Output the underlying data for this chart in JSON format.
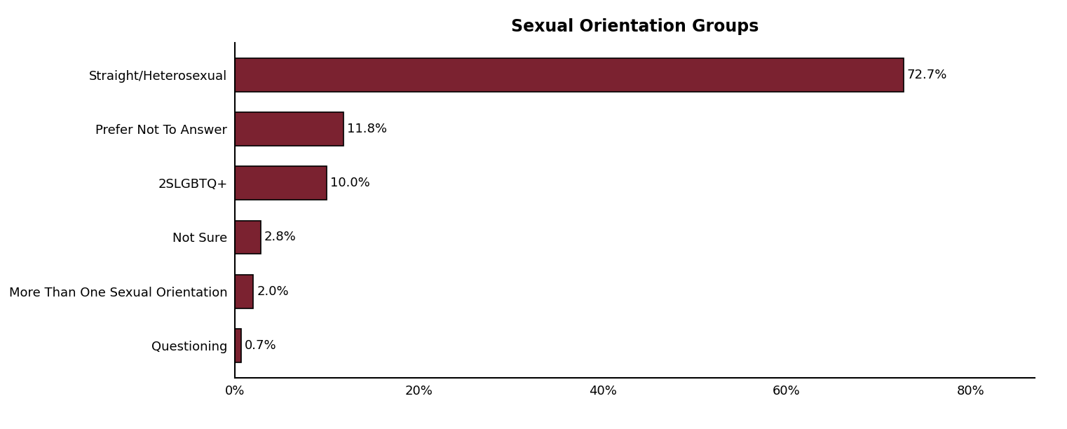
{
  "title": "Sexual Orientation Groups",
  "categories": [
    "Questioning",
    "More Than One Sexual Orientation",
    "Not Sure",
    "2SLGBTQ+",
    "Prefer Not To Answer",
    "Straight/Heterosexual"
  ],
  "values": [
    0.7,
    2.0,
    2.8,
    10.0,
    11.8,
    72.7
  ],
  "bar_color": "#7B2230",
  "label_color": "#000000",
  "background_color": "#ffffff",
  "title_fontsize": 17,
  "label_fontsize": 13,
  "tick_fontsize": 13,
  "xlim": [
    0,
    87
  ],
  "xticks": [
    0,
    20,
    40,
    60,
    80
  ],
  "xtick_labels": [
    "0%",
    "20%",
    "40%",
    "60%",
    "80%"
  ],
  "bar_height": 0.62,
  "figsize": [
    15.22,
    6.12
  ],
  "dpi": 100
}
